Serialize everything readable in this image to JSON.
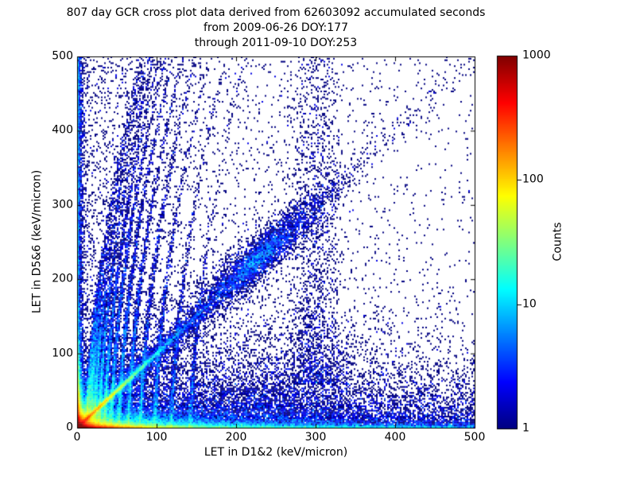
{
  "title": {
    "line1": "807 day GCR cross plot data derived from 62603092 accumulated seconds",
    "line2": "from 2009-06-26 DOY:177",
    "line3": "through 2011-09-10 DOY:253"
  },
  "chart_data": {
    "type": "heatmap",
    "subtype": "2d-histogram-scatter",
    "title": "807 day GCR cross plot data derived from 62603092 accumulated seconds from 2009-06-26 DOY:177 through 2011-09-10 DOY:253",
    "xlabel": "LET in D1&2 (keV/micron)",
    "ylabel": "LET in D5&6 (keV/micron)",
    "xlim": [
      0,
      500
    ],
    "ylim": [
      0,
      500
    ],
    "x_ticks": [
      0,
      100,
      200,
      300,
      400,
      500
    ],
    "y_ticks": [
      0,
      100,
      200,
      300,
      400,
      500
    ],
    "grid": false,
    "background": "#ffffff",
    "colorbar": {
      "label": "Counts",
      "scale": "log",
      "min": 1,
      "max": 1000,
      "ticks": [
        1,
        10,
        100,
        1000
      ],
      "colormap": "jet",
      "min_color": "#000080",
      "max_color": "#800000"
    },
    "features": [
      "very hot (red, ~1000 counts) blob at origin (0-10, 0-10)",
      "red-to-yellow-to-cyan band along bottom edge y<6, hot out to x~70, cyan line to x~500",
      "red-to-cyan band along left edge x<6 extending to y~500",
      "hot diagonal track y=x from origin, red to ~(13,13), yellow-green to ~(45,45), cyan-blue beyond",
      "several faint curved near-vertical tracks rising from bottom at x ~ 12-142",
      "diffuse diagonal band y~x from ~(100,100) to ~(320,320) with dense blue cluster near (230,228)",
      "vertical scatter band near x~300 reaching y~500",
      "sparse navy single-count speckle, denser at low x and low y"
    ],
    "streak_defaults": {
      "tilt1": 0.04,
      "tilt2": 0.0002,
      "jitter": 1.4,
      "puni": 0.12
    },
    "components": [
      {
        "name": "origin-core",
        "kind": "xy",
        "n": 20000,
        "x": {
          "dist": "exp",
          "scale": 5
        },
        "y": {
          "dist": "exp",
          "scale": 5
        }
      },
      {
        "name": "origin-halo",
        "kind": "xy",
        "n": 9000,
        "x": {
          "dist": "exp",
          "scale": 12
        },
        "y": {
          "dist": "exp",
          "scale": 12
        }
      },
      {
        "name": "left-edge-column",
        "kind": "xy",
        "n": 3500,
        "x": {
          "dist": "exp",
          "scale": 2.5
        },
        "y": {
          "dist": "uni",
          "a": 0,
          "b": 500
        }
      },
      {
        "name": "left-edge-hot",
        "kind": "xy",
        "n": 9000,
        "x": {
          "dist": "exp",
          "scale": 2
        },
        "y": {
          "dist": "exp",
          "scale": 28
        }
      },
      {
        "name": "bottom-edge-line",
        "kind": "xy",
        "n": 8200,
        "x": {
          "dist": "exp",
          "scale": 400
        },
        "y": {
          "dist": "exp",
          "scale": 2.5
        }
      },
      {
        "name": "bottom-edge-hot",
        "kind": "xy",
        "n": 16000,
        "x": {
          "dist": "exp",
          "scale": 30
        },
        "y": {
          "dist": "exp",
          "scale": 2
        }
      },
      {
        "name": "bottom-haze",
        "kind": "xy",
        "n": 12000,
        "x": {
          "dist": "exp",
          "scale": 80
        },
        "y": {
          "dist": "exp",
          "scale": 9
        }
      },
      {
        "name": "bottom-scatter-wide",
        "kind": "xy",
        "n": 5500,
        "x": {
          "dist": "uni",
          "a": 0,
          "b": 500
        },
        "y": {
          "dist": "exp",
          "scale": 35
        }
      },
      {
        "name": "bottom-scatter-left",
        "kind": "xy",
        "n": 5000,
        "x": {
          "dist": "exp",
          "scale": 200
        },
        "y": {
          "dist": "exp",
          "scale": 45
        }
      },
      {
        "name": "below-diag-haze",
        "kind": "xy",
        "n": 2200,
        "x": {
          "dist": "norm",
          "mu": 250,
          "sigma": 70
        },
        "y": {
          "dist": "exp",
          "scale": 50
        }
      },
      {
        "name": "diag-hot",
        "kind": "diag",
        "n": 10000,
        "t": {
          "dist": "exp",
          "scale": 30
        },
        "jitter": 1.3
      },
      {
        "name": "diag-haze",
        "kind": "diag",
        "n": 3000,
        "t": {
          "dist": "exp",
          "scale": 80
        },
        "jitter": 5
      },
      {
        "name": "diag-band",
        "kind": "diag",
        "n": 2500,
        "t": {
          "dist": "exp",
          "scale": 120
        },
        "jitter": 10
      },
      {
        "name": "diag-cluster",
        "kind": "diag",
        "n": 2600,
        "t": {
          "dist": "norm",
          "mu": 230,
          "sigma": 40
        },
        "jitter": 13
      },
      {
        "name": "diag-cluster-core",
        "kind": "diag",
        "n": 700,
        "t": {
          "dist": "norm",
          "mu": 228,
          "sigma": 14
        },
        "jitter": 7
      },
      {
        "name": "track-streak",
        "kind": "streak",
        "x0": 12,
        "n": 2400,
        "yscale": 55
      },
      {
        "name": "track-streak",
        "kind": "streak",
        "x0": 16,
        "n": 2300,
        "yscale": 65
      },
      {
        "name": "track-streak",
        "kind": "streak",
        "x0": 21,
        "n": 2200,
        "yscale": 75
      },
      {
        "name": "track-streak",
        "kind": "streak",
        "x0": 27,
        "n": 2100,
        "yscale": 85
      },
      {
        "name": "track-streak",
        "kind": "streak",
        "x0": 34,
        "n": 2000,
        "yscale": 95
      },
      {
        "name": "track-streak",
        "kind": "streak",
        "x0": 42,
        "n": 1800,
        "yscale": 105
      },
      {
        "name": "track-streak",
        "kind": "streak",
        "x0": 52,
        "n": 1600,
        "yscale": 115
      },
      {
        "name": "track-streak",
        "kind": "streak",
        "x0": 64,
        "n": 1400,
        "yscale": 120
      },
      {
        "name": "track-streak",
        "kind": "streak",
        "x0": 79,
        "n": 1200,
        "yscale": 115
      },
      {
        "name": "track-streak",
        "kind": "streak",
        "x0": 97,
        "n": 1000,
        "yscale": 105
      },
      {
        "name": "track-streak",
        "kind": "streak",
        "x0": 118,
        "n": 800,
        "yscale": 95
      },
      {
        "name": "track-streak",
        "kind": "streak",
        "x0": 142,
        "n": 600,
        "yscale": 85
      },
      {
        "name": "vertical-band-300",
        "kind": "xy",
        "n": 1500,
        "x": {
          "dist": "norm",
          "mu": 300,
          "sigma": 16
        },
        "y": {
          "dist": "pow",
          "a": 60,
          "b": 500,
          "k": 1.5
        }
      },
      {
        "name": "bg-left-weighted",
        "kind": "xy",
        "n": 2600,
        "x": {
          "dist": "exp",
          "scale": 130
        },
        "y": {
          "dist": "uni",
          "a": 0,
          "b": 500
        }
      },
      {
        "name": "bg-uniform",
        "kind": "xy",
        "n": 1400,
        "x": {
          "dist": "uni",
          "a": 0,
          "b": 500
        },
        "y": {
          "dist": "uni",
          "a": 0,
          "b": 500
        }
      }
    ]
  }
}
